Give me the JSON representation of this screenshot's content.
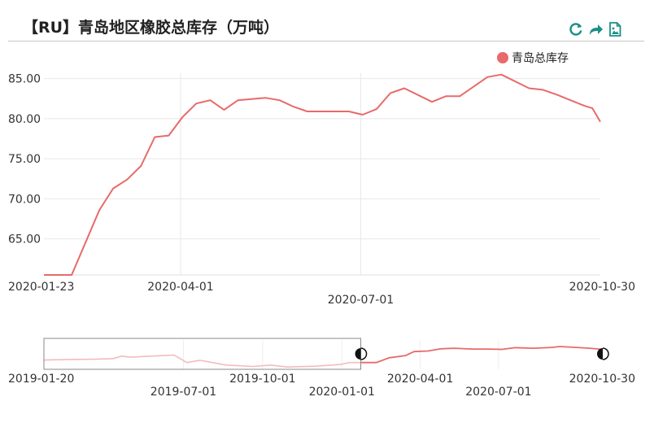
{
  "header": {
    "title": "【RU】青岛地区橡胶总库存（万吨）",
    "tools": [
      {
        "name": "restore-icon",
        "color": "#1a8f86"
      },
      {
        "name": "share-icon",
        "color": "#1a8f86"
      },
      {
        "name": "save-image-icon",
        "color": "#1a8f86"
      }
    ]
  },
  "chart_data": {
    "type": "line",
    "title": "【RU】青岛地区橡胶总库存（万吨）",
    "legend": {
      "placement": "top-right",
      "entries": [
        "青岛总库存"
      ]
    },
    "series": [
      {
        "name": "青岛总库存",
        "color": "#e86a6a",
        "points": [
          [
            "2020-01-23",
            60.5
          ],
          [
            "2020-02-06",
            60.5
          ],
          [
            "2020-02-20",
            68.6
          ],
          [
            "2020-02-27",
            71.3
          ],
          [
            "2020-03-05",
            72.4
          ],
          [
            "2020-03-12",
            74.1
          ],
          [
            "2020-03-19",
            77.7
          ],
          [
            "2020-03-26",
            77.9
          ],
          [
            "2020-04-02",
            80.2
          ],
          [
            "2020-04-09",
            81.9
          ],
          [
            "2020-04-16",
            82.3
          ],
          [
            "2020-04-23",
            81.1
          ],
          [
            "2020-04-30",
            82.3
          ],
          [
            "2020-05-14",
            82.6
          ],
          [
            "2020-05-21",
            82.3
          ],
          [
            "2020-05-28",
            81.5
          ],
          [
            "2020-06-04",
            80.9
          ],
          [
            "2020-06-11",
            80.9
          ],
          [
            "2020-06-18",
            80.9
          ],
          [
            "2020-06-25",
            80.9
          ],
          [
            "2020-07-02",
            80.5
          ],
          [
            "2020-07-09",
            81.2
          ],
          [
            "2020-07-16",
            83.2
          ],
          [
            "2020-07-23",
            83.8
          ],
          [
            "2020-08-06",
            82.1
          ],
          [
            "2020-08-13",
            82.8
          ],
          [
            "2020-08-20",
            82.8
          ],
          [
            "2020-09-03",
            85.2
          ],
          [
            "2020-09-10",
            85.5
          ],
          [
            "2020-09-24",
            83.8
          ],
          [
            "2020-10-01",
            83.6
          ],
          [
            "2020-10-08",
            83.0
          ],
          [
            "2020-10-22",
            81.6
          ],
          [
            "2020-10-26",
            81.3
          ],
          [
            "2020-10-30",
            79.6
          ]
        ]
      }
    ],
    "x_range": [
      "2020-01-23",
      "2020-10-30"
    ],
    "x_ticks": [
      "2020-01-23",
      "2020-04-01",
      "2020-07-01",
      "2020-10-30"
    ],
    "y_range": [
      60.5,
      87.5
    ],
    "y_ticks": [
      "65.00",
      "70.00",
      "75.00",
      "80.00",
      "85.00"
    ],
    "grid": true,
    "data_zoom": {
      "full_range": [
        "2019-01-20",
        "2020-10-30"
      ],
      "selected_range": [
        "2020-01-23",
        "2020-10-30"
      ],
      "axis_labels": [
        "2019-01-20",
        "2019-07-01",
        "2019-10-01",
        "2020-01-01",
        "2020-04-01",
        "2020-07-01",
        "2020-10-30"
      ],
      "overview_points": [
        [
          "2019-01-20",
          74.8
        ],
        [
          "2019-02-20",
          75.0
        ],
        [
          "2019-03-20",
          75.1
        ],
        [
          "2019-04-10",
          75.3
        ],
        [
          "2019-04-20",
          76.2
        ],
        [
          "2019-05-01",
          75.8
        ],
        [
          "2019-05-20",
          76.1
        ],
        [
          "2019-06-20",
          76.6
        ],
        [
          "2019-07-05",
          73.9
        ],
        [
          "2019-07-20",
          74.7
        ],
        [
          "2019-08-20",
          73.0
        ],
        [
          "2019-09-20",
          72.5
        ],
        [
          "2019-10-10",
          73.0
        ],
        [
          "2019-10-30",
          72.3
        ],
        [
          "2019-12-01",
          72.6
        ],
        [
          "2019-12-30",
          73.2
        ],
        [
          "2020-01-10",
          73.9
        ],
        [
          "2020-01-23",
          73.9
        ],
        [
          "2020-02-10",
          73.9
        ],
        [
          "2020-02-25",
          75.6
        ],
        [
          "2020-03-15",
          76.4
        ],
        [
          "2020-03-25",
          77.8
        ],
        [
          "2020-04-10",
          78.0
        ],
        [
          "2020-04-25",
          78.8
        ],
        [
          "2020-05-10",
          79.0
        ],
        [
          "2020-06-01",
          78.7
        ],
        [
          "2020-06-20",
          78.7
        ],
        [
          "2020-07-05",
          78.6
        ],
        [
          "2020-07-20",
          79.2
        ],
        [
          "2020-08-10",
          79.0
        ],
        [
          "2020-09-01",
          79.3
        ],
        [
          "2020-09-10",
          79.6
        ],
        [
          "2020-09-30",
          79.3
        ],
        [
          "2020-10-15",
          79.0
        ],
        [
          "2020-10-30",
          78.6
        ]
      ],
      "overview_y_range": [
        71.5,
        82.5
      ],
      "selected_color": "#e86a6a",
      "unselected_color": "#f2bcbc"
    }
  }
}
